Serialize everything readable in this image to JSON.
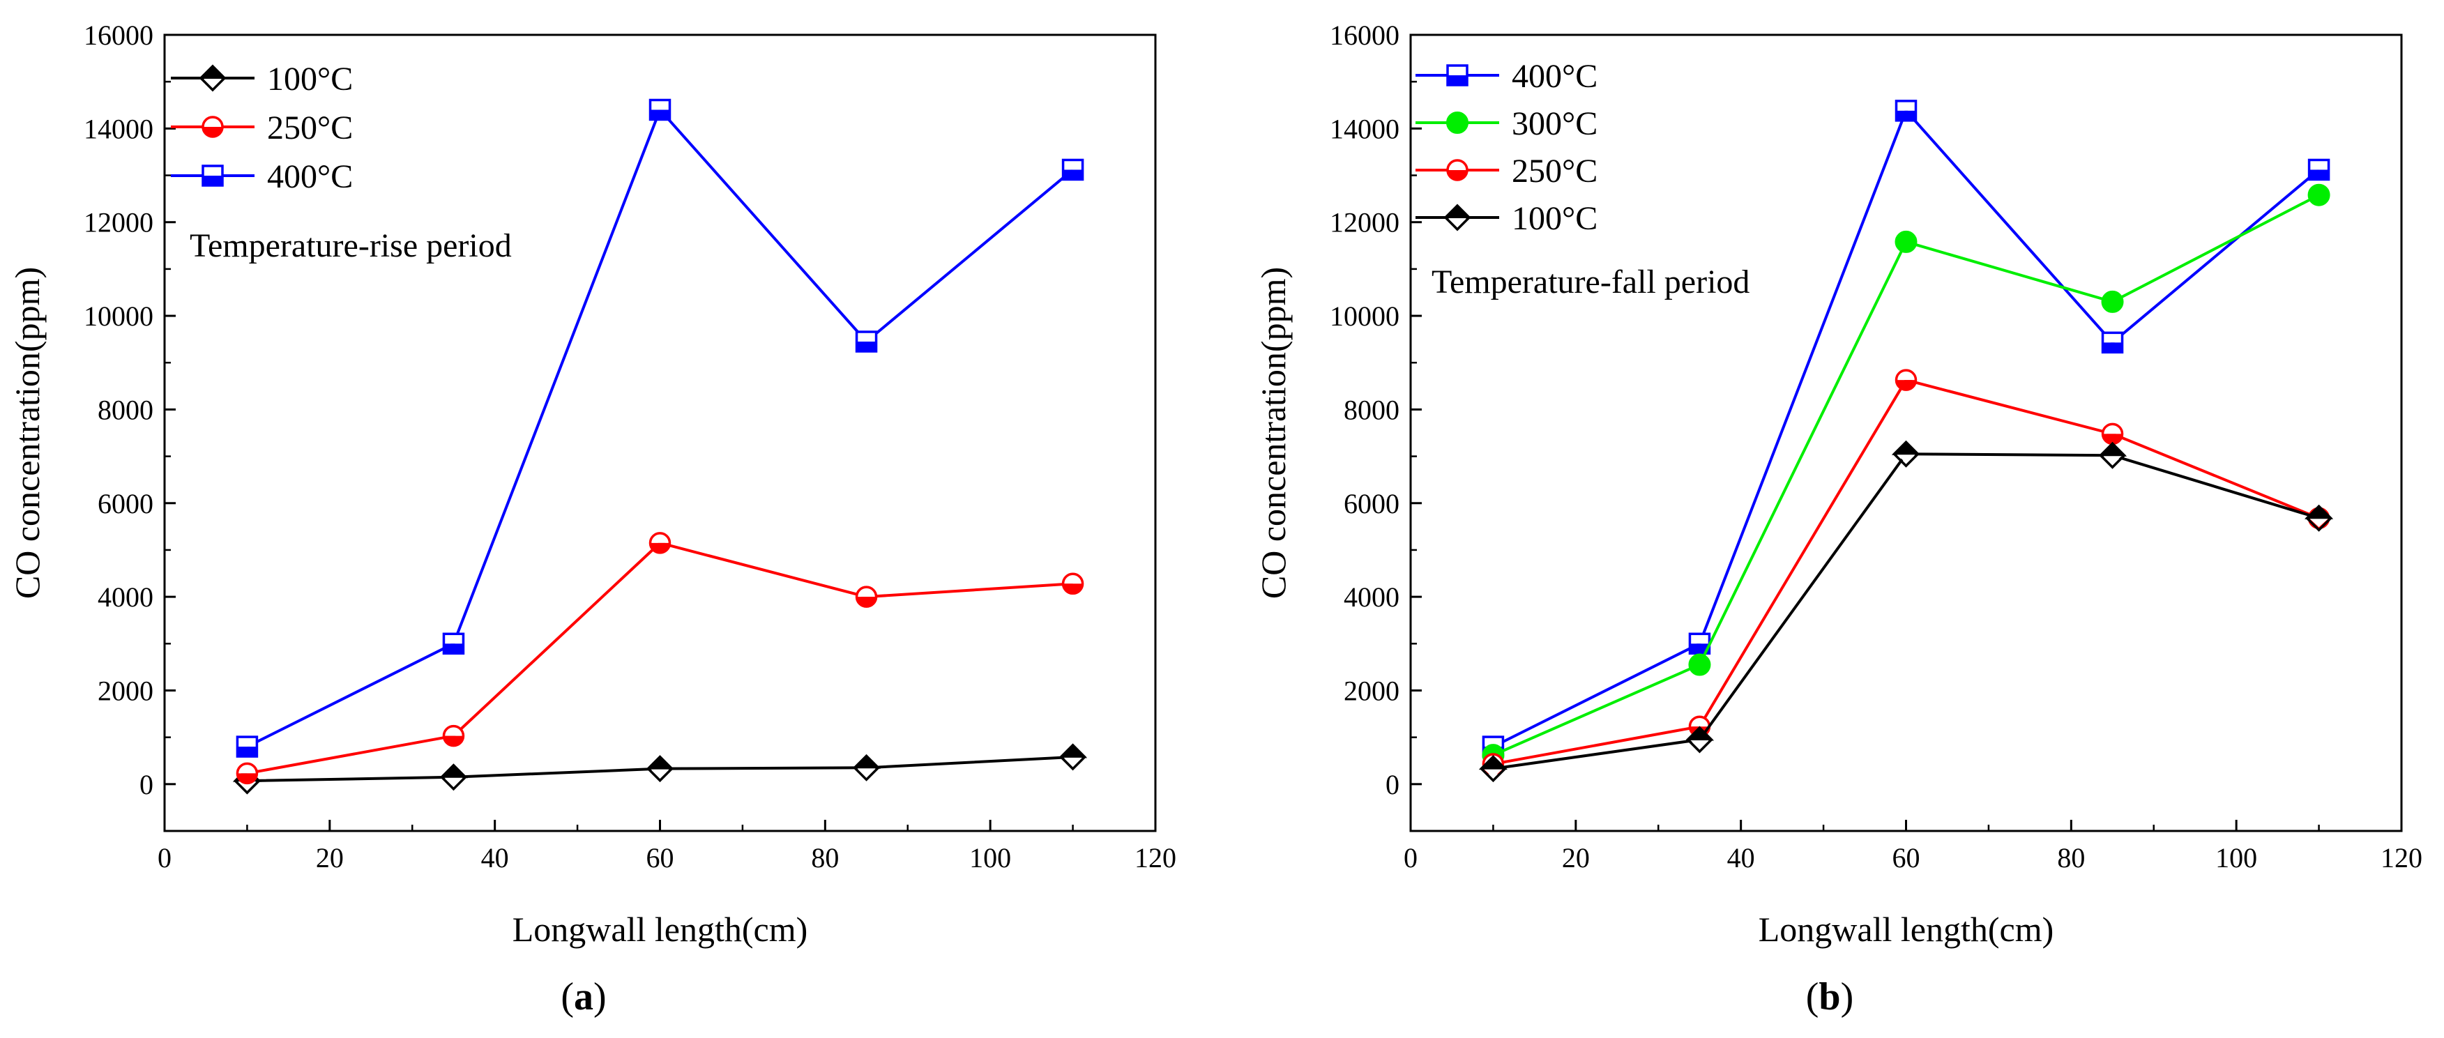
{
  "chart_data": [
    {
      "type": "line",
      "panel_label": "a",
      "annotation": "Temperature-rise period",
      "xlabel": "Longwall length(cm)",
      "ylabel": "CO concentration(ppm)",
      "xlim": [
        0,
        120
      ],
      "ylim": [
        -1000,
        16000
      ],
      "xticks": [
        0,
        20,
        40,
        60,
        80,
        100,
        120
      ],
      "yticks": [
        0,
        2000,
        4000,
        6000,
        8000,
        10000,
        12000,
        14000,
        16000
      ],
      "legend_position": "top-left",
      "x": [
        10,
        35,
        60,
        85,
        110
      ],
      "series": [
        {
          "name": "100°C",
          "color": "#000000",
          "marker": "diamond",
          "values": [
            70,
            150,
            330,
            350,
            580
          ]
        },
        {
          "name": "250°C",
          "color": "#ff0000",
          "marker": "circle-half",
          "values": [
            230,
            1030,
            5150,
            4000,
            4280
          ]
        },
        {
          "name": "400°C",
          "color": "#0000ff",
          "marker": "square-half",
          "values": [
            800,
            3000,
            14400,
            9450,
            13120
          ]
        }
      ]
    },
    {
      "type": "line",
      "panel_label": "b",
      "annotation": "Temperature-fall period",
      "xlabel": "Longwall length(cm)",
      "ylabel": "CO concentration(ppm)",
      "xlim": [
        0,
        120
      ],
      "ylim": [
        -1000,
        16000
      ],
      "xticks": [
        0,
        20,
        40,
        60,
        80,
        100,
        120
      ],
      "yticks": [
        0,
        2000,
        4000,
        6000,
        8000,
        10000,
        12000,
        14000,
        16000
      ],
      "legend_position": "top-left",
      "x": [
        10,
        35,
        60,
        85,
        110
      ],
      "series": [
        {
          "name": "400°C",
          "color": "#0000ff",
          "marker": "square-half",
          "values": [
            800,
            3000,
            14380,
            9430,
            13120
          ]
        },
        {
          "name": "300°C",
          "color": "#00ee00",
          "marker": "circle-filled",
          "values": [
            620,
            2550,
            11580,
            10300,
            12580
          ]
        },
        {
          "name": "250°C",
          "color": "#ff0000",
          "marker": "circle-half",
          "values": [
            430,
            1230,
            8630,
            7480,
            5680
          ]
        },
        {
          "name": "100°C",
          "color": "#000000",
          "marker": "diamond",
          "values": [
            330,
            950,
            7050,
            7020,
            5680
          ]
        }
      ]
    }
  ]
}
